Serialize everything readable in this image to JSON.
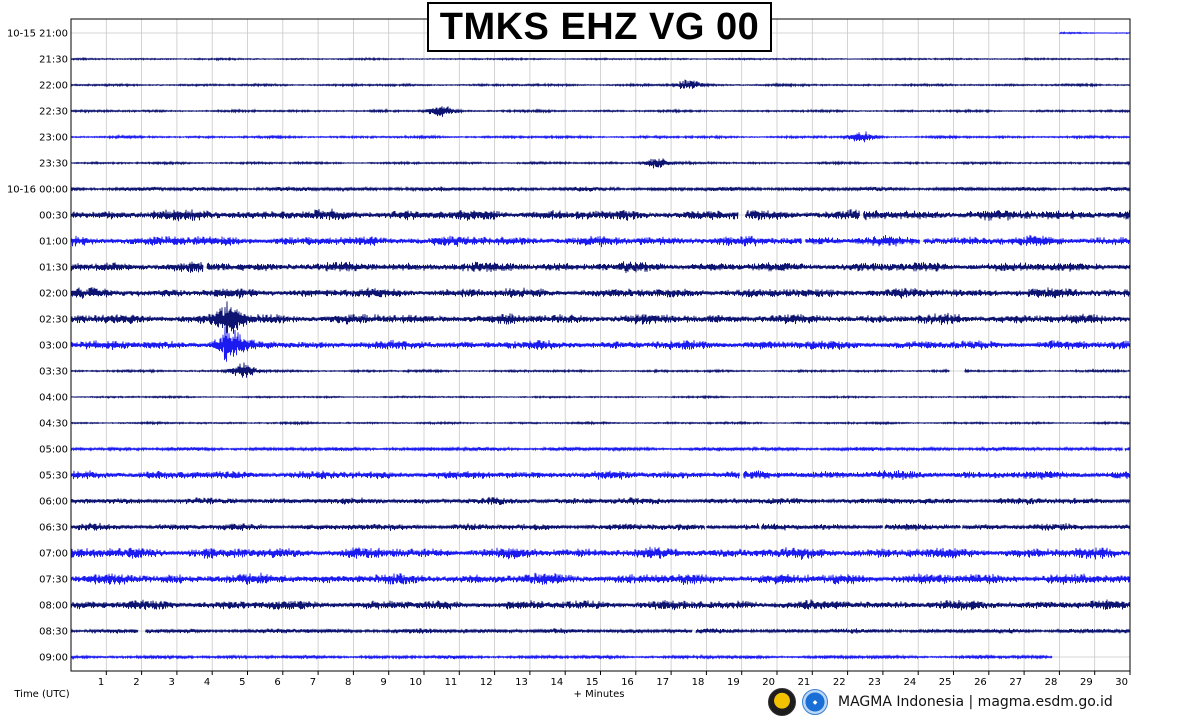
{
  "title": "TMKS EHZ VG 00",
  "footer": {
    "text": "MAGMA Indonesia | magma.esdm.go.id"
  },
  "icons": {
    "gov_logo": "esdm-logo-icon",
    "magma_logo": "magma-logo-icon"
  },
  "chart_data": {
    "type": "helicorder",
    "station": "TMKS EHZ VG 00",
    "xlabel": "+ Minutes",
    "ylabel": "Time (UTC)",
    "xlim": [
      0,
      30
    ],
    "x_ticks": [
      1,
      2,
      3,
      4,
      5,
      6,
      7,
      8,
      9,
      10,
      11,
      12,
      13,
      14,
      15,
      16,
      17,
      18,
      19,
      20,
      21,
      22,
      23,
      24,
      25,
      26,
      27,
      28,
      29,
      30
    ],
    "grid": true,
    "colors": {
      "dark": "#0c1370",
      "bright": "#1b1bf0",
      "grid": "#c8c8c8"
    },
    "rows": [
      {
        "label": "10-15 21:00",
        "color": "bright",
        "amplitude": 0.6,
        "data_from": 28,
        "data_to": 30,
        "gaps": []
      },
      {
        "label": "21:30",
        "color": "dark",
        "amplitude": 0.7,
        "gaps": []
      },
      {
        "label": "22:00",
        "color": "dark",
        "amplitude": 0.9,
        "events": [
          [
            17.5,
            3.5
          ]
        ],
        "gaps": []
      },
      {
        "label": "22:30",
        "color": "dark",
        "amplitude": 0.9,
        "events": [
          [
            10.5,
            5
          ]
        ],
        "gaps": []
      },
      {
        "label": "23:00",
        "color": "bright",
        "amplitude": 1.0,
        "events": [
          [
            22.4,
            3.5
          ]
        ],
        "gaps": []
      },
      {
        "label": "23:30",
        "color": "dark",
        "amplitude": 0.9,
        "events": [
          [
            16.6,
            4
          ]
        ],
        "gaps": []
      },
      {
        "label": "10-16 00:00",
        "color": "dark",
        "amplitude": 1.8,
        "gaps": []
      },
      {
        "label": "00:30",
        "color": "dark",
        "amplitude": 4.5,
        "gaps": [
          [
            18.9,
            19.1
          ],
          [
            22.35,
            22.45
          ]
        ]
      },
      {
        "label": "01:00",
        "color": "bright",
        "amplitude": 4.2,
        "gaps": [
          [
            20.7,
            20.8
          ],
          [
            24.05,
            24.15
          ]
        ]
      },
      {
        "label": "01:30",
        "color": "dark",
        "amplitude": 4.0,
        "gaps": [
          [
            3.75,
            3.85
          ]
        ]
      },
      {
        "label": "02:00",
        "color": "dark",
        "amplitude": 4.0,
        "gaps": []
      },
      {
        "label": "02:30",
        "color": "dark",
        "amplitude": 4.2,
        "events": [
          [
            4.5,
            12
          ]
        ],
        "gaps": []
      },
      {
        "label": "03:00",
        "color": "bright",
        "amplitude": 3.8,
        "events": [
          [
            4.5,
            12
          ]
        ],
        "gaps": []
      },
      {
        "label": "03:30",
        "color": "dark",
        "amplitude": 0.9,
        "events": [
          [
            4.9,
            6
          ]
        ],
        "gaps": [
          [
            24.9,
            25.3
          ]
        ]
      },
      {
        "label": "04:00",
        "color": "dark",
        "amplitude": 0.7,
        "gaps": []
      },
      {
        "label": "04:30",
        "color": "dark",
        "amplitude": 0.8,
        "gaps": []
      },
      {
        "label": "05:00",
        "color": "bright",
        "amplitude": 1.6,
        "gaps": [
          [
            29.8,
            29.85
          ]
        ]
      },
      {
        "label": "05:30",
        "color": "bright",
        "amplitude": 3.6,
        "gaps": [
          [
            18.95,
            19.05
          ]
        ]
      },
      {
        "label": "06:00",
        "color": "dark",
        "amplitude": 2.8,
        "gaps": []
      },
      {
        "label": "06:30",
        "color": "dark",
        "amplitude": 2.8,
        "gaps": [
          [
            17.95,
            18.0
          ],
          [
            19.5,
            19.55
          ],
          [
            23.0,
            23.05
          ],
          [
            25.2,
            25.25
          ]
        ]
      },
      {
        "label": "07:00",
        "color": "bright",
        "amplitude": 4.5,
        "gaps": []
      },
      {
        "label": "07:30",
        "color": "bright",
        "amplitude": 4.5,
        "gaps": []
      },
      {
        "label": "08:00",
        "color": "dark",
        "amplitude": 4.0,
        "gaps": []
      },
      {
        "label": "08:30",
        "color": "dark",
        "amplitude": 2.0,
        "gaps": [
          [
            1.9,
            2.1
          ],
          [
            17.6,
            17.7
          ]
        ]
      },
      {
        "label": "09:00",
        "color": "bright",
        "amplitude": 1.4,
        "data_from": 0,
        "data_to": 27.8,
        "gaps": []
      }
    ]
  }
}
